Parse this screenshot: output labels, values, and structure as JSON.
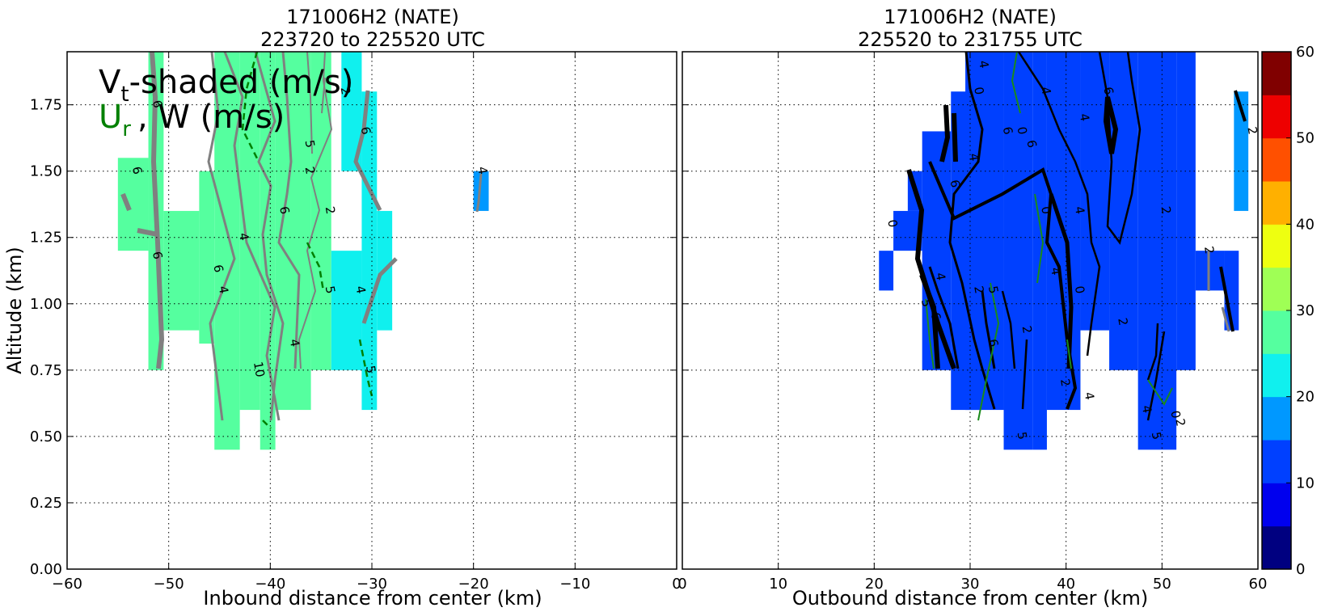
{
  "chart_data": [
    {
      "type": "contour",
      "title": [
        "171006H2 (NATE)",
        "223720 to 225520 UTC"
      ],
      "xlabel": "Inbound distance from center (km)",
      "ylabel": "Altitude (km)",
      "xlim": [
        -60,
        0
      ],
      "ylim": [
        0.0,
        1.95
      ],
      "xticks": [
        "−60",
        "−50",
        "−40",
        "−30",
        "−20",
        "−10",
        "0"
      ],
      "yticks": [
        "0.00",
        "0.25",
        "0.50",
        "0.75",
        "1.00",
        "1.25",
        "1.50",
        "1.75"
      ],
      "grid": true,
      "annotation": {
        "line1_main": "V",
        "line1_sub": "t",
        "line1_rest": "-shaded (m/s)",
        "line2_main": "U",
        "line2_sub": "r",
        "line2_rest": ", W (m/s)",
        "color_line1": "#000000",
        "color_line2": "#008000"
      },
      "shaded_vt": [
        {
          "x": [
            -52,
            -50.5
          ],
          "y": [
            0.75,
            1.95
          ],
          "vt": 27
        },
        {
          "x": [
            -55,
            -52
          ],
          "y": [
            1.2,
            1.55
          ],
          "vt": 27
        },
        {
          "x": [
            -50.5,
            -47
          ],
          "y": [
            0.9,
            1.35
          ],
          "vt": 27
        },
        {
          "x": [
            -47,
            -45.5
          ],
          "y": [
            0.85,
            1.5
          ],
          "vt": 27
        },
        {
          "x": [
            -45.5,
            -43
          ],
          "y": [
            0.45,
            1.95
          ],
          "vt": 27
        },
        {
          "x": [
            -43,
            -41
          ],
          "y": [
            0.6,
            1.95
          ],
          "vt": 27
        },
        {
          "x": [
            -41,
            -39.5
          ],
          "y": [
            0.45,
            1.95
          ],
          "vt": 27
        },
        {
          "x": [
            -39.5,
            -36
          ],
          "y": [
            0.6,
            1.95
          ],
          "vt": 27
        },
        {
          "x": [
            -36,
            -34
          ],
          "y": [
            0.75,
            1.95
          ],
          "vt": 26
        },
        {
          "x": [
            -34,
            -31
          ],
          "y": [
            0.75,
            1.2
          ],
          "vt": 23
        },
        {
          "x": [
            -33,
            -31
          ],
          "y": [
            1.5,
            1.95
          ],
          "vt": 23
        },
        {
          "x": [
            -31,
            -29.5
          ],
          "y": [
            0.6,
            1.8
          ],
          "vt": 23
        },
        {
          "x": [
            -29.5,
            -28
          ],
          "y": [
            0.9,
            1.35
          ],
          "vt": 23
        },
        {
          "x": [
            -20,
            -18.5
          ],
          "y": [
            1.35,
            1.5
          ],
          "vt": 18
        }
      ],
      "contour_labels": [
        {
          "x": -51.5,
          "y": 1.75,
          "text": "6"
        },
        {
          "x": -53.5,
          "y": 1.5,
          "text": "6"
        },
        {
          "x": -51.5,
          "y": 1.18,
          "text": "6"
        },
        {
          "x": -45.5,
          "y": 1.13,
          "text": "6"
        },
        {
          "x": -45,
          "y": 1.05,
          "text": "4"
        },
        {
          "x": -43,
          "y": 1.25,
          "text": "4"
        },
        {
          "x": -41.5,
          "y": 0.75,
          "text": "10"
        },
        {
          "x": -38,
          "y": 0.85,
          "text": "4"
        },
        {
          "x": -39,
          "y": 1.35,
          "text": "6"
        },
        {
          "x": -36.5,
          "y": 1.5,
          "text": "2"
        },
        {
          "x": -34.5,
          "y": 1.35,
          "text": "2"
        },
        {
          "x": -36.5,
          "y": 1.6,
          "text": "5"
        },
        {
          "x": -33,
          "y": 1.8,
          "text": "2"
        },
        {
          "x": -31,
          "y": 1.65,
          "text": "6"
        },
        {
          "x": -31.5,
          "y": 1.05,
          "text": "4"
        },
        {
          "x": -34.5,
          "y": 1.05,
          "text": "5"
        },
        {
          "x": -30.5,
          "y": 0.75,
          "text": "5"
        },
        {
          "x": -19.5,
          "y": 1.5,
          "text": "4"
        }
      ]
    },
    {
      "type": "contour",
      "title": [
        "171006H2 (NATE)",
        "225520 to 231755 UTC"
      ],
      "xlabel": "Outbound distance from center (km)",
      "ylabel": "",
      "xlim": [
        0,
        60
      ],
      "ylim": [
        0.0,
        1.95
      ],
      "xticks": [
        "0",
        "10",
        "20",
        "30",
        "40",
        "50",
        "60"
      ],
      "yticks": [
        "0.00",
        "0.25",
        "0.50",
        "0.75",
        "1.00",
        "1.25",
        "1.50",
        "1.75"
      ],
      "grid": true,
      "shaded_vt": [
        {
          "x": [
            20.5,
            22
          ],
          "y": [
            1.05,
            1.2
          ],
          "vt": 13
        },
        {
          "x": [
            22,
            25
          ],
          "y": [
            1.2,
            1.35
          ],
          "vt": 12
        },
        {
          "x": [
            23.5,
            25
          ],
          "y": [
            1.35,
            1.5
          ],
          "vt": 11
        },
        {
          "x": [
            25,
            28
          ],
          "y": [
            0.75,
            1.65
          ],
          "vt": 11
        },
        {
          "x": [
            28,
            31
          ],
          "y": [
            0.6,
            1.8
          ],
          "vt": 11
        },
        {
          "x": [
            29.5,
            33.5
          ],
          "y": [
            0.6,
            1.95
          ],
          "vt": 11
        },
        {
          "x": [
            33.5,
            36.5
          ],
          "y": [
            0.45,
            1.95
          ],
          "vt": 11
        },
        {
          "x": [
            36.5,
            38
          ],
          "y": [
            0.45,
            1.95
          ],
          "vt": 12
        },
        {
          "x": [
            38,
            41.5
          ],
          "y": [
            0.6,
            1.95
          ],
          "vt": 13
        },
        {
          "x": [
            41.5,
            44.5
          ],
          "y": [
            0.9,
            1.95
          ],
          "vt": 13
        },
        {
          "x": [
            44.5,
            47.5
          ],
          "y": [
            0.75,
            1.95
          ],
          "vt": 14
        },
        {
          "x": [
            47.5,
            51.5
          ],
          "y": [
            0.45,
            1.95
          ],
          "vt": 14
        },
        {
          "x": [
            51.5,
            53.5
          ],
          "y": [
            0.75,
            1.95
          ],
          "vt": 14
        },
        {
          "x": [
            53.5,
            56.5
          ],
          "y": [
            1.05,
            1.2
          ],
          "vt": 14
        },
        {
          "x": [
            56.5,
            58
          ],
          "y": [
            0.9,
            1.2
          ],
          "vt": 14
        },
        {
          "x": [
            57.5,
            59
          ],
          "y": [
            1.35,
            1.8
          ],
          "vt": 17
        }
      ],
      "contour_labels": [
        {
          "x": 31,
          "y": 1.9,
          "text": "4"
        },
        {
          "x": 30.5,
          "y": 1.8,
          "text": "0"
        },
        {
          "x": 35,
          "y": 1.65,
          "text": "0"
        },
        {
          "x": 33.5,
          "y": 1.65,
          "text": "6"
        },
        {
          "x": 36,
          "y": 1.6,
          "text": "6"
        },
        {
          "x": 37.5,
          "y": 1.8,
          "text": "4"
        },
        {
          "x": 41.5,
          "y": 1.7,
          "text": "4"
        },
        {
          "x": 44,
          "y": 1.8,
          "text": "6"
        },
        {
          "x": 30,
          "y": 1.55,
          "text": "4"
        },
        {
          "x": 28,
          "y": 1.45,
          "text": "6"
        },
        {
          "x": 21.5,
          "y": 1.3,
          "text": "0"
        },
        {
          "x": 37.5,
          "y": 1.35,
          "text": "0"
        },
        {
          "x": 41,
          "y": 1.35,
          "text": "4"
        },
        {
          "x": 50,
          "y": 1.35,
          "text": "2"
        },
        {
          "x": 54.5,
          "y": 1.2,
          "text": "2"
        },
        {
          "x": 26.5,
          "y": 1.1,
          "text": "4"
        },
        {
          "x": 26,
          "y": 0.95,
          "text": "6"
        },
        {
          "x": 25,
          "y": 1.0,
          "text": "5"
        },
        {
          "x": 30.5,
          "y": 1.05,
          "text": "2"
        },
        {
          "x": 32,
          "y": 1.05,
          "text": "5"
        },
        {
          "x": 38.5,
          "y": 1.12,
          "text": "4"
        },
        {
          "x": 41,
          "y": 1.05,
          "text": "0"
        },
        {
          "x": 35.5,
          "y": 0.9,
          "text": "2"
        },
        {
          "x": 32,
          "y": 0.85,
          "text": "6"
        },
        {
          "x": 45.5,
          "y": 0.93,
          "text": "2"
        },
        {
          "x": 42,
          "y": 0.65,
          "text": "4"
        },
        {
          "x": 39.5,
          "y": 0.7,
          "text": "2"
        },
        {
          "x": 35,
          "y": 0.5,
          "text": "5"
        },
        {
          "x": 48,
          "y": 0.6,
          "text": "4"
        },
        {
          "x": 49,
          "y": 0.5,
          "text": "5"
        },
        {
          "x": 51,
          "y": 0.58,
          "text": "0"
        },
        {
          "x": 51.5,
          "y": 0.55,
          "text": "2"
        },
        {
          "x": 59,
          "y": 1.65,
          "text": "2"
        }
      ]
    }
  ],
  "colorbar": {
    "ticks": [
      "0",
      "10",
      "20",
      "30",
      "40",
      "50",
      "60"
    ],
    "bounds": [
      0,
      5,
      10,
      15,
      20,
      25,
      30,
      35,
      40,
      45,
      50,
      55,
      60
    ],
    "colors": [
      "#000080",
      "#0000ee",
      "#0040ff",
      "#0098ff",
      "#10f0ee",
      "#55ff9f",
      "#9fff55",
      "#eeff10",
      "#ffb000",
      "#ff5000",
      "#ee0000",
      "#800000"
    ]
  }
}
